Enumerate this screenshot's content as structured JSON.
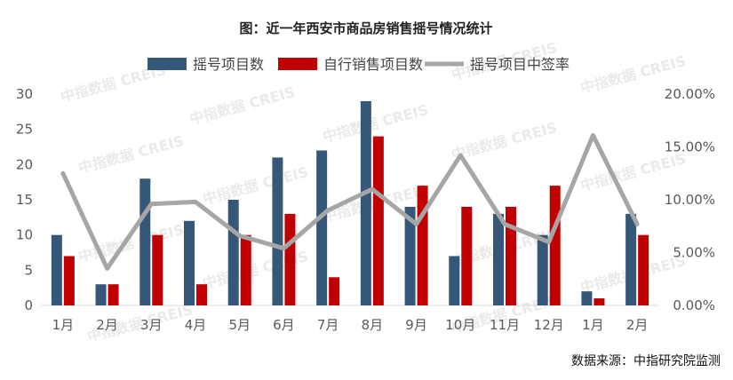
{
  "title": "图：近一年西安市商品房销售摇号情况统计",
  "source": "数据来源：中指研究院监测",
  "watermark": "中指数据 CREIS",
  "colors": {
    "lottery_projects": "#355878",
    "self_sales_projects": "#c00000",
    "lottery_rate": "#a6a6a6",
    "axis": "#d9d9d9"
  },
  "chart_data": {
    "type": "bar",
    "title": "图：近一年西安市商品房销售摇号情况统计",
    "categories": [
      "1月",
      "2月",
      "3月",
      "4月",
      "5月",
      "6月",
      "7月",
      "8月",
      "9月",
      "10月",
      "11月",
      "12月",
      "1月",
      "2月"
    ],
    "series": [
      {
        "name": "摇号项目数",
        "type": "bar",
        "axis": "left",
        "values": [
          10,
          3,
          18,
          12,
          15,
          21,
          22,
          29,
          14,
          7,
          13,
          10,
          2,
          13
        ]
      },
      {
        "name": "自行销售项目数",
        "type": "bar",
        "axis": "left",
        "values": [
          7,
          3,
          10,
          3,
          10,
          13,
          4,
          24,
          17,
          14,
          14,
          17,
          1,
          10
        ]
      },
      {
        "name": "摇号项目中签率",
        "type": "line",
        "axis": "right",
        "values": [
          12.5,
          3.5,
          9.6,
          9.8,
          6.6,
          5.4,
          9.0,
          11.0,
          7.7,
          14.2,
          7.7,
          6.0,
          16.1,
          7.7
        ]
      }
    ],
    "left_axis": {
      "ylim": [
        0,
        30
      ],
      "ticks": [
        "0",
        "5",
        "10",
        "15",
        "20",
        "25",
        "30"
      ]
    },
    "right_axis": {
      "ylim": [
        0,
        20
      ],
      "ticks": [
        "0.00%",
        "5.00%",
        "10.00%",
        "15.00%",
        "20.00%"
      ]
    },
    "legend_position": "top-center",
    "grid": false
  }
}
